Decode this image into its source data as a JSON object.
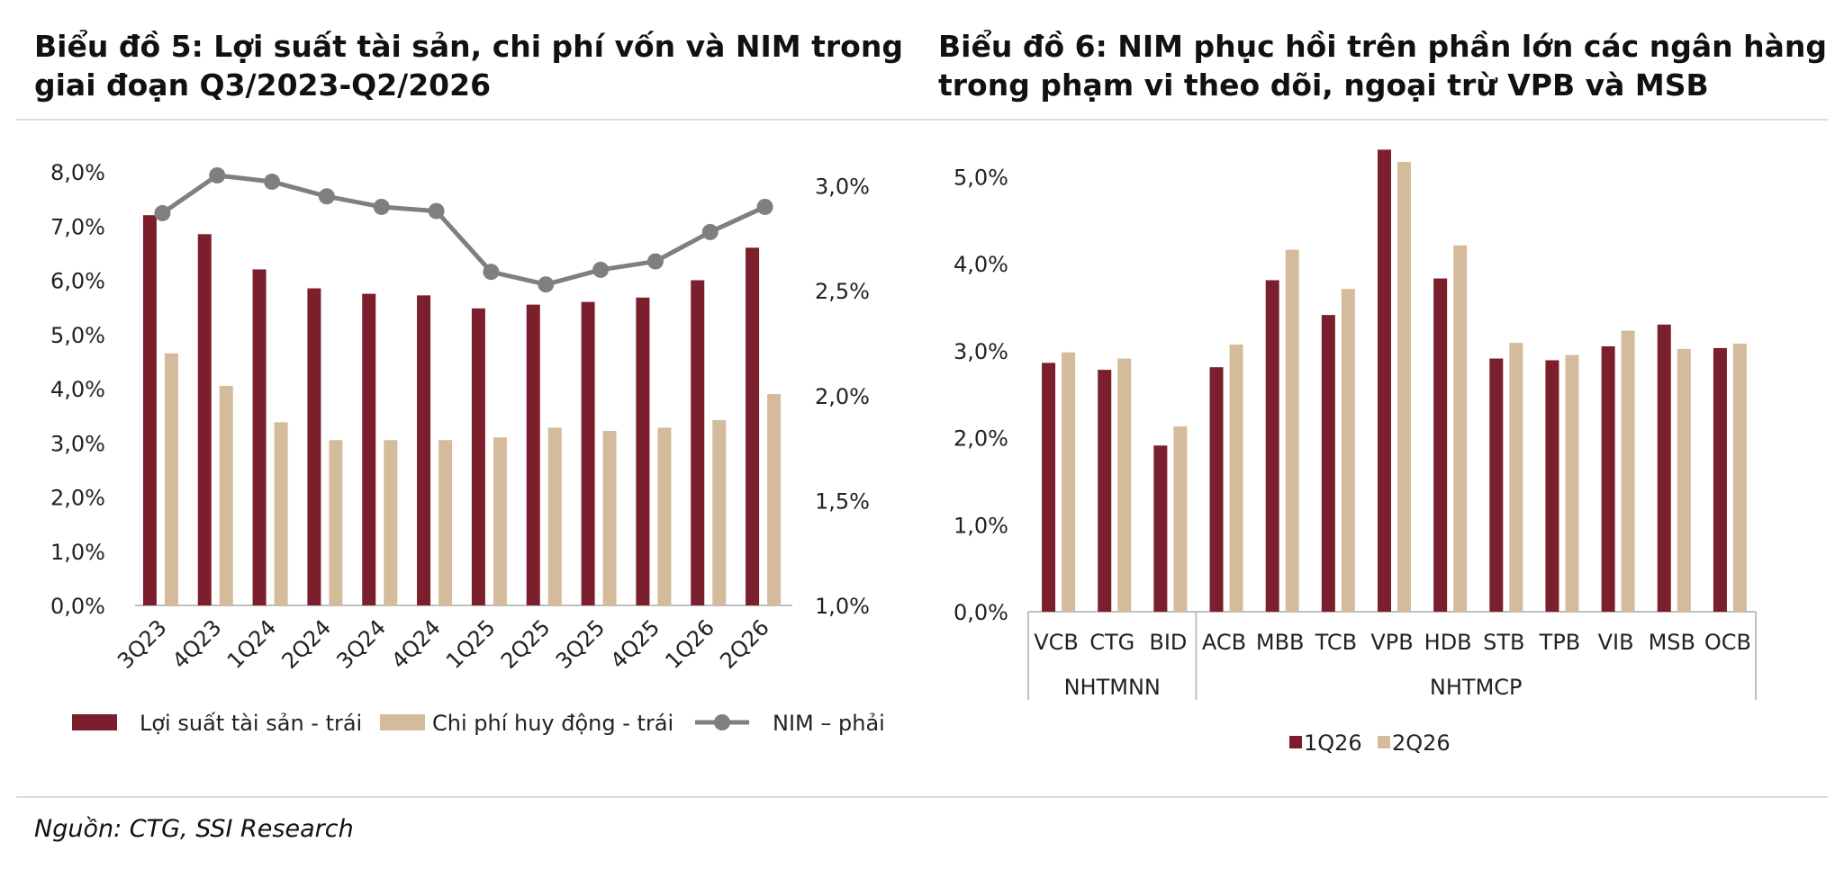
{
  "titles": {
    "chart5": "Biểu đồ 5: Lợi suất tài sản, chi phí vốn và NIM trong giai đoạn Q3/2023-Q2/2026",
    "chart6": "Biểu đồ 6: NIM phục hồi trên phần lớn các ngân hàng trong phạm vi theo dõi, ngoại trừ VPB và MSB"
  },
  "source": "Nguồn: CTG, SSI Research",
  "colors": {
    "dark_red": "#7b1f2c",
    "beige": "#d4bb9b",
    "gray": "#7f7f7f",
    "axis": "#bfbfbf"
  },
  "chart_data": [
    {
      "type": "bar",
      "title": "Biểu đồ 5: Lợi suất tài sản, chi phí vốn và NIM trong giai đoạn Q3/2023-Q2/2026",
      "categories": [
        "3Q23",
        "4Q23",
        "1Q24",
        "2Q24",
        "3Q24",
        "4Q24",
        "1Q25",
        "2Q25",
        "3Q25",
        "4Q25",
        "1Q26",
        "2Q26"
      ],
      "series": [
        {
          "name": "Lợi suất tài sản - trái",
          "type": "bar",
          "axis": "left",
          "color": "#7b1f2c",
          "values": [
            7.2,
            6.85,
            6.2,
            5.85,
            5.75,
            5.72,
            5.48,
            5.55,
            5.6,
            5.68,
            6.0,
            6.6
          ]
        },
        {
          "name": "Chi phí huy động - trái",
          "type": "bar",
          "axis": "left",
          "color": "#d4bb9b",
          "values": [
            4.65,
            4.05,
            3.38,
            3.05,
            3.05,
            3.05,
            3.1,
            3.28,
            3.22,
            3.28,
            3.42,
            3.9
          ]
        },
        {
          "name": "NIM – phải",
          "type": "line",
          "axis": "right",
          "color": "#7f7f7f",
          "values": [
            2.87,
            3.05,
            3.02,
            2.95,
            2.9,
            2.88,
            2.59,
            2.53,
            2.6,
            2.64,
            2.78,
            2.9
          ]
        }
      ],
      "y_left": {
        "min": 0,
        "max": 8,
        "step": 1,
        "tick_labels": [
          "0,0%",
          "1,0%",
          "2,0%",
          "3,0%",
          "4,0%",
          "5,0%",
          "6,0%",
          "7,0%",
          "8,0%"
        ]
      },
      "y_right": {
        "min": 1.0,
        "max": 3.2,
        "ticks": [
          1.0,
          1.5,
          2.0,
          2.5,
          3.0
        ],
        "tick_labels": [
          "1,0%",
          "1,5%",
          "2,0%",
          "2,5%",
          "3,0%"
        ]
      },
      "grid": false,
      "legend_position": "bottom"
    },
    {
      "type": "bar",
      "title": "Biểu đồ 6: NIM phục hồi trên phần lớn các ngân hàng trong phạm vi theo dõi, ngoại trừ VPB và MSB",
      "categories": [
        "VCB",
        "CTG",
        "BID",
        "ACB",
        "MBB",
        "TCB",
        "VPB",
        "HDB",
        "STB",
        "TPB",
        "VIB",
        "MSB",
        "OCB"
      ],
      "groups": [
        {
          "name": "NHTMNN",
          "categories": [
            "VCB",
            "CTG",
            "BID"
          ]
        },
        {
          "name": "NHTMCP",
          "categories": [
            "ACB",
            "MBB",
            "TCB",
            "VPB",
            "HDB",
            "STB",
            "TPB",
            "VIB",
            "MSB",
            "OCB"
          ]
        }
      ],
      "series": [
        {
          "name": "1Q26",
          "color": "#7b1f2c",
          "values": [
            2.86,
            2.78,
            1.91,
            2.81,
            3.81,
            3.41,
            5.31,
            3.83,
            2.91,
            2.89,
            3.05,
            3.3,
            3.03
          ]
        },
        {
          "name": "2Q26",
          "color": "#d4bb9b",
          "values": [
            2.98,
            2.91,
            2.13,
            3.07,
            4.16,
            3.71,
            5.17,
            4.21,
            3.09,
            2.95,
            3.23,
            3.02,
            3.08
          ]
        }
      ],
      "y": {
        "min": 0,
        "max": 5.5,
        "ticks": [
          0,
          1,
          2,
          3,
          4,
          5
        ],
        "tick_labels": [
          "0,0%",
          "1,0%",
          "2,0%",
          "3,0%",
          "4,0%",
          "5,0%"
        ]
      },
      "grid": false,
      "legend_position": "bottom"
    }
  ]
}
